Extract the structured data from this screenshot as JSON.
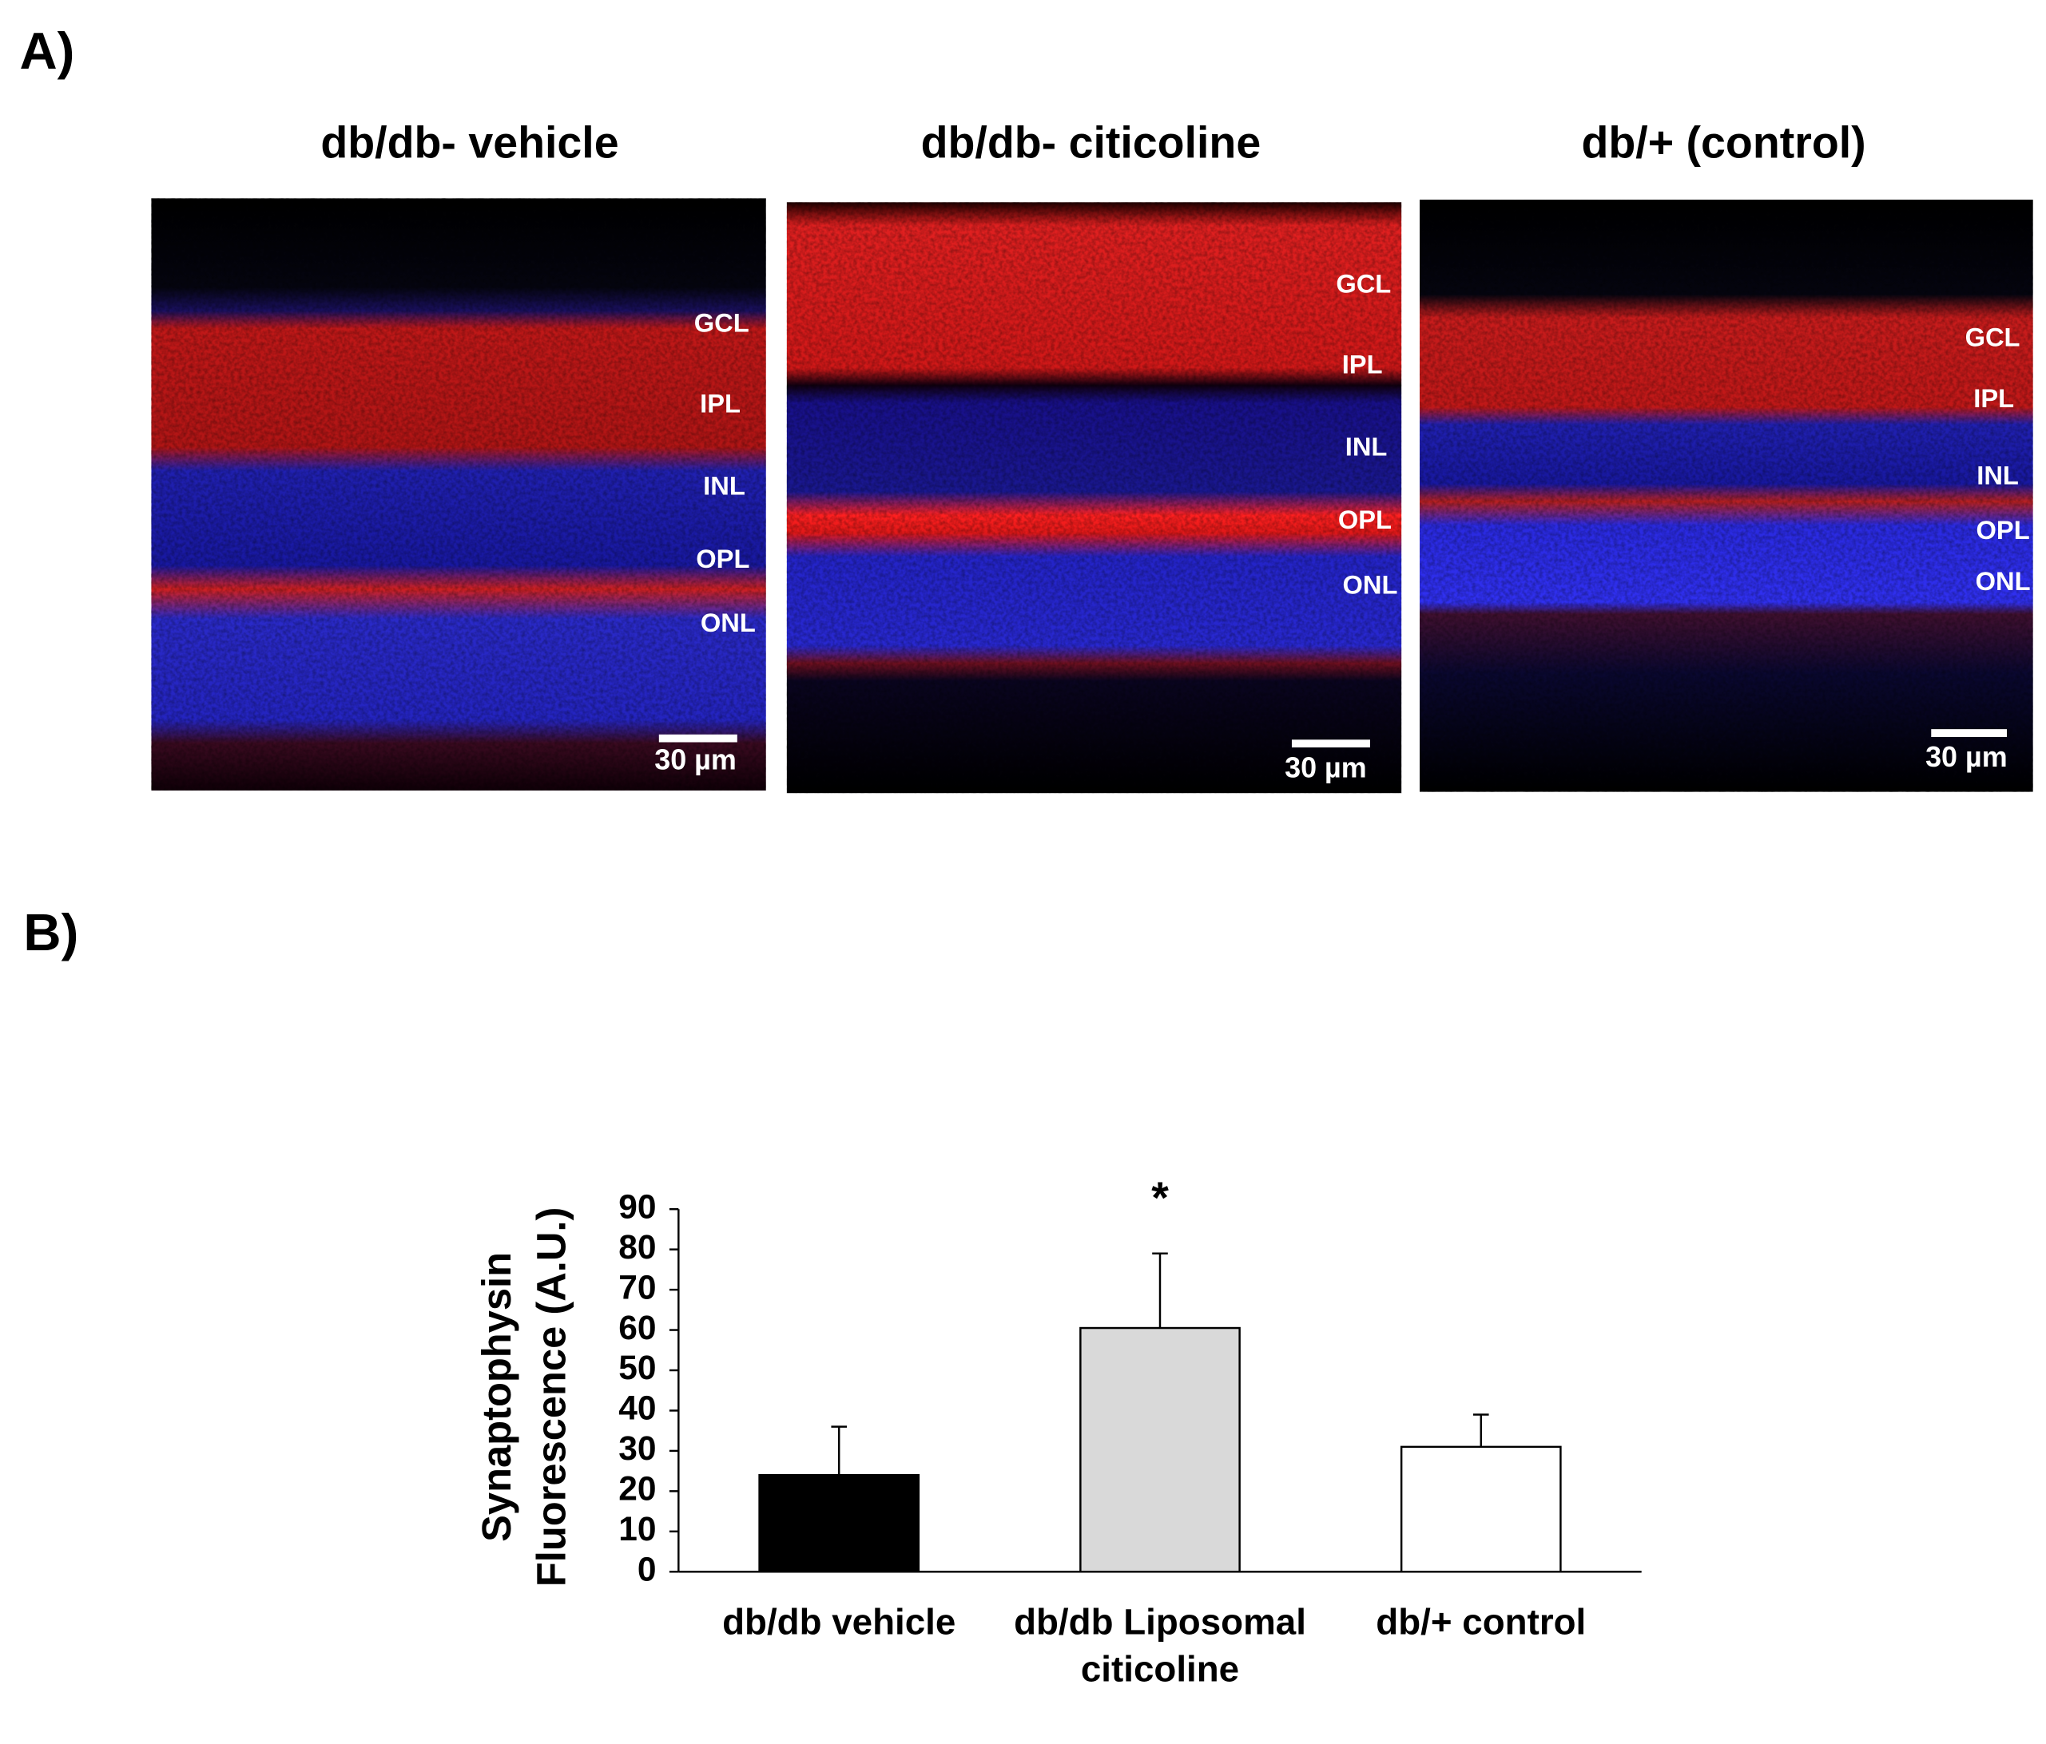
{
  "panel_a": {
    "label": "A)",
    "images": [
      {
        "title": "db/db- vehicle",
        "layers": [
          "GCL",
          "IPL",
          "INL",
          "OPL",
          "ONL"
        ],
        "scale_bar": "30 µm"
      },
      {
        "title": "db/db- citicoline",
        "layers": [
          "GCL",
          "IPL",
          "INL",
          "OPL",
          "ONL"
        ],
        "scale_bar": "30 µm"
      },
      {
        "title": "db/+ (control)",
        "layers": [
          "GCL",
          "IPL",
          "INL",
          "OPL",
          "ONL"
        ],
        "scale_bar": "30 µm"
      }
    ]
  },
  "panel_b": {
    "label": "B)",
    "chart_data": {
      "type": "bar",
      "categories": [
        "db/db vehicle",
        "db/db Liposomal citicoline",
        "db/+ control"
      ],
      "values": [
        24,
        60.5,
        31
      ],
      "errors": [
        12,
        18.5,
        8
      ],
      "colors": [
        "#000000",
        "#d9d9d9",
        "#ffffff"
      ],
      "significance": [
        null,
        "*",
        null
      ],
      "y_label": [
        "Synaptophysin",
        "Fluorescence (A.U.)"
      ],
      "ylim": [
        0,
        90
      ],
      "yticks": [
        0,
        10,
        20,
        30,
        40,
        50,
        60,
        70,
        80,
        90
      ]
    }
  }
}
